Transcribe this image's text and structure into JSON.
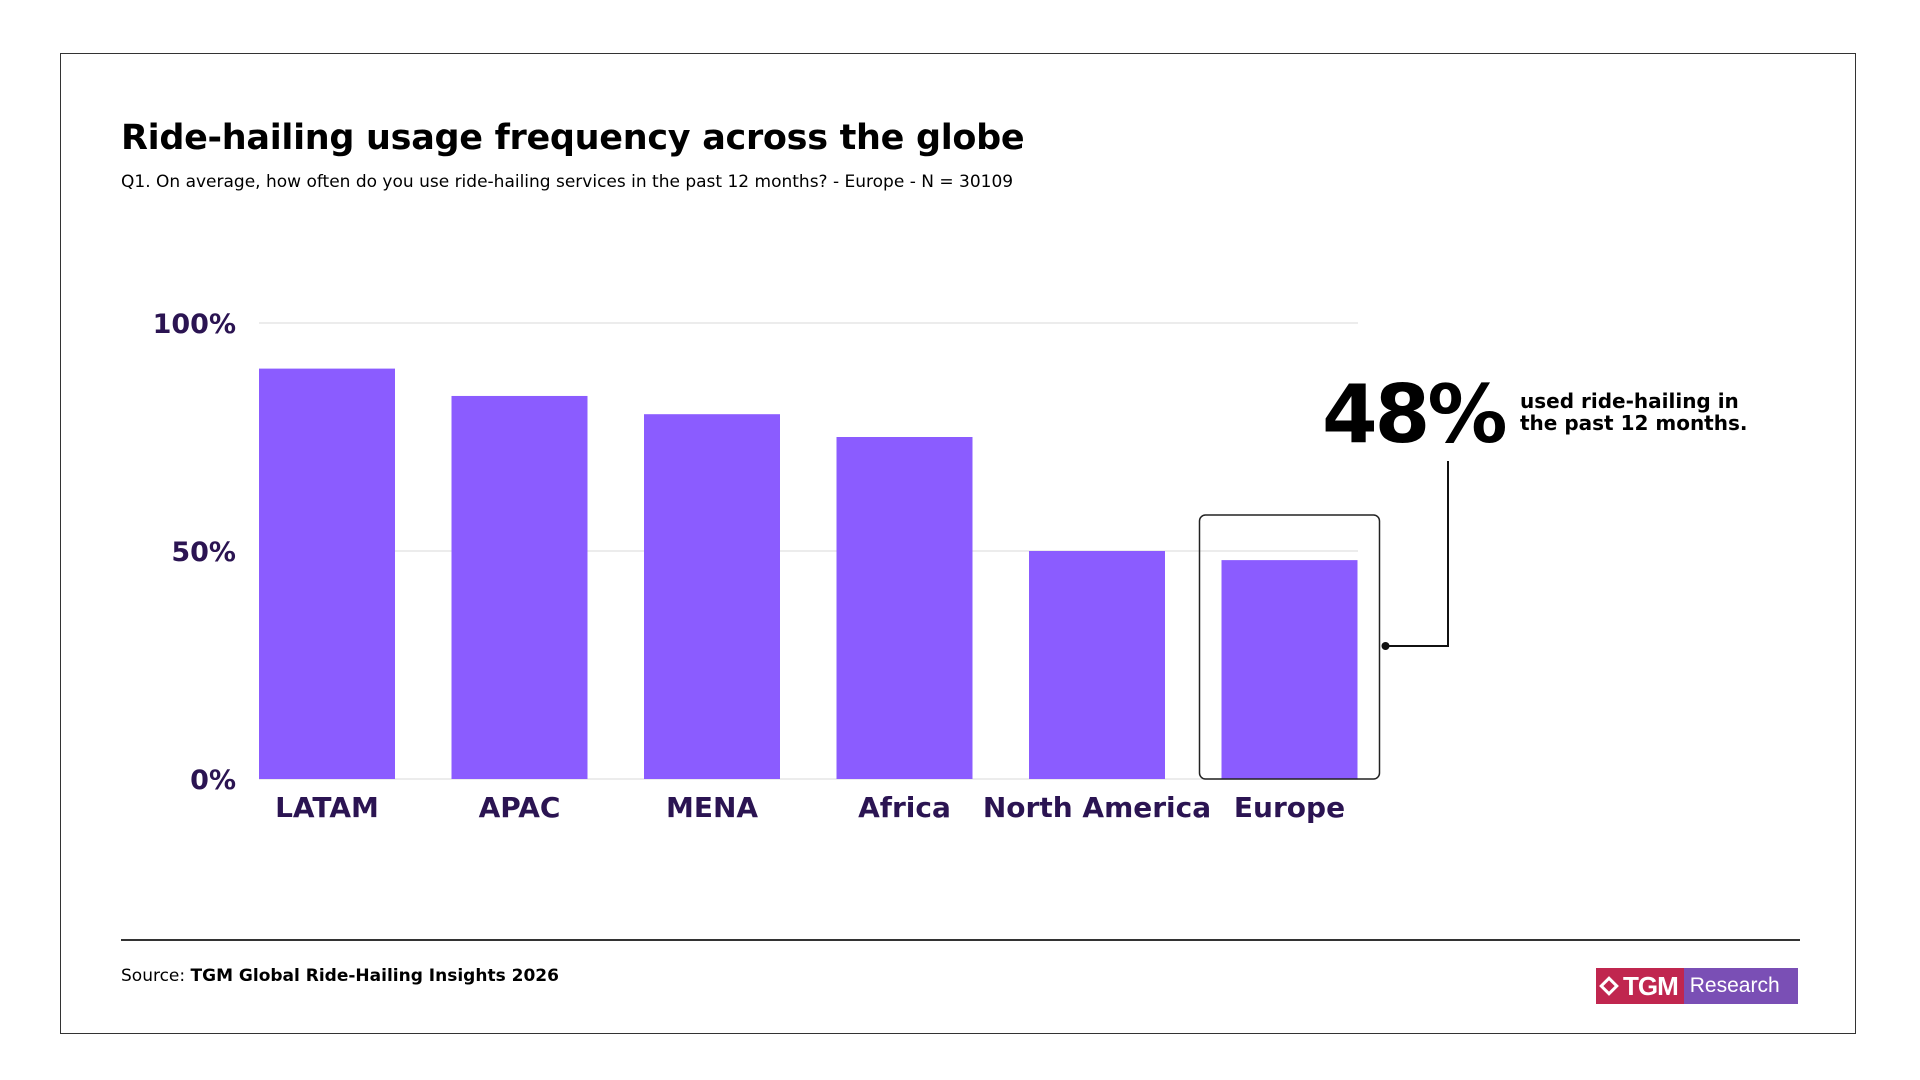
{
  "colors": {
    "bar": "#8b5cff",
    "axis_text": "#2b1452",
    "grid": "#e6e6e6",
    "brand_red": "#c0264f",
    "brand_purple": "#7a4fb5"
  },
  "header": {
    "title": "Ride-hailing usage frequency across the globe",
    "subtitle": "Q1. On average, how often do you use ride-hailing services in the past 12 months? - Europe - N  = 30109"
  },
  "chart_data": {
    "type": "bar",
    "categories": [
      "LATAM",
      "APAC",
      "MENA",
      "Africa",
      "North America",
      "Europe"
    ],
    "values": [
      90,
      84,
      80,
      75,
      50,
      48
    ],
    "ylim": [
      0,
      100
    ],
    "yticks": [
      "0%",
      "50%",
      "100%"
    ],
    "ytick_values": [
      0,
      50,
      100
    ],
    "highlight": "Europe",
    "grid": true
  },
  "callout": {
    "value": "48%",
    "text": "used ride-hailing in the past 12 months."
  },
  "footer": {
    "source_label": "Source:",
    "source_value": "TGM Global Ride-Hailing Insights 2026",
    "logo_left": "TGM",
    "logo_right": "Research"
  }
}
